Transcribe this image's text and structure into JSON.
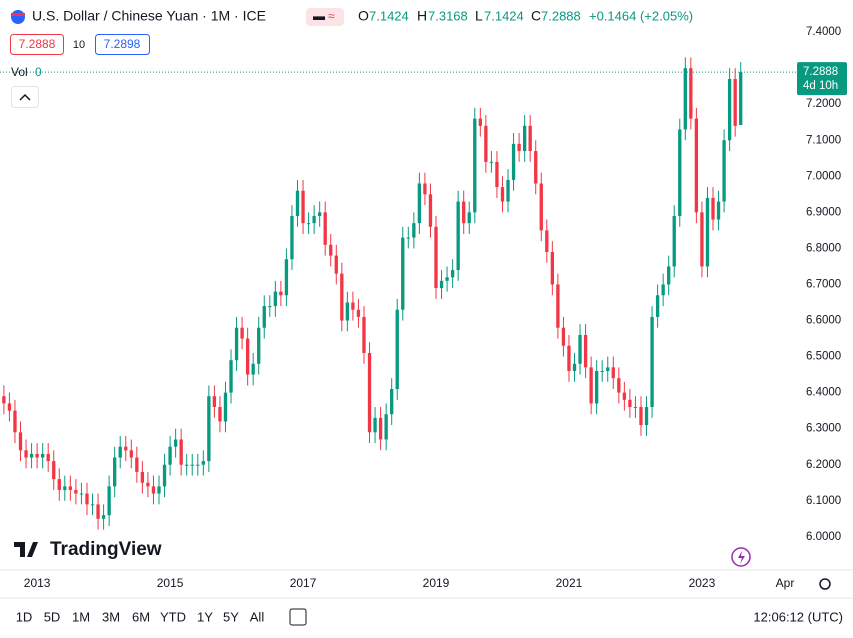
{
  "header": {
    "symbol": "U.S. Dollar / Chinese Yuan · 1M · ICE",
    "o_label": "O",
    "h_label": "H",
    "l_label": "L",
    "c_label": "C",
    "change": "+0.1464 (+2.05%)",
    "bid_size": 10,
    "ask": 7.2898,
    "volume_label": "Vol",
    "volume": 0,
    "countdown": "4d 10h"
  },
  "chart_data": {
    "type": "candlestick",
    "up_color": "#089981",
    "down_color": "#f23645",
    "open": [
      6.39,
      6.37,
      6.35,
      6.29,
      6.24,
      6.22,
      6.23,
      6.22,
      6.23,
      6.21,
      6.16,
      6.13,
      6.14,
      6.13,
      6.12,
      6.12,
      6.09,
      6.09,
      6.05,
      6.06,
      6.14,
      6.22,
      6.25,
      6.24,
      6.22,
      6.18,
      6.15,
      6.14,
      6.12,
      6.14,
      6.2,
      6.25,
      6.27,
      6.2,
      6.2,
      6.2,
      6.2,
      6.21,
      6.39,
      6.36,
      6.32,
      6.4,
      6.49,
      6.58,
      6.55,
      6.45,
      6.48,
      6.58,
      6.64,
      6.64,
      6.68,
      6.67,
      6.77,
      6.89,
      6.96,
      6.87,
      6.87,
      6.89,
      6.9,
      6.81,
      6.78,
      6.73,
      6.6,
      6.65,
      6.63,
      6.61,
      6.51,
      6.29,
      6.33,
      6.27,
      6.34,
      6.41,
      6.63,
      6.83,
      6.83,
      6.87,
      6.98,
      6.95,
      6.86,
      6.69,
      6.71,
      6.72,
      6.74,
      6.93,
      6.87,
      6.9,
      7.16,
      7.14,
      7.04,
      7.04,
      6.97,
      6.93,
      6.99,
      7.09,
      7.07,
      7.14,
      7.07,
      6.98,
      6.85,
      6.79,
      6.7,
      6.58,
      6.53,
      6.46,
      6.48,
      6.56,
      6.47,
      6.37,
      6.46,
      6.46,
      6.47,
      6.44,
      6.4,
      6.38,
      6.36,
      6.36,
      6.31,
      6.36,
      6.61,
      6.67,
      6.7,
      6.75,
      6.89,
      7.13,
      7.3,
      7.16,
      6.9,
      6.75,
      6.94,
      6.88,
      6.93,
      7.1,
      7.27,
      7.1424
    ],
    "high": [
      6.42,
      6.4,
      6.38,
      6.32,
      6.27,
      6.26,
      6.26,
      6.26,
      6.26,
      6.24,
      6.19,
      6.17,
      6.17,
      6.16,
      6.15,
      6.15,
      6.12,
      6.12,
      6.09,
      6.17,
      6.25,
      6.28,
      6.28,
      6.27,
      6.25,
      6.21,
      6.18,
      6.17,
      6.17,
      6.23,
      6.28,
      6.3,
      6.3,
      6.23,
      6.23,
      6.23,
      6.24,
      6.42,
      6.42,
      6.39,
      6.43,
      6.52,
      6.61,
      6.61,
      6.58,
      6.51,
      6.61,
      6.67,
      6.67,
      6.71,
      6.71,
      6.8,
      6.92,
      6.99,
      6.99,
      6.9,
      6.92,
      6.93,
      6.93,
      6.84,
      6.81,
      6.76,
      6.68,
      6.68,
      6.66,
      6.64,
      6.54,
      6.36,
      6.36,
      6.37,
      6.44,
      6.66,
      6.86,
      6.86,
      6.9,
      7.01,
      7.01,
      6.98,
      6.89,
      6.74,
      6.75,
      6.77,
      6.96,
      6.96,
      6.93,
      7.19,
      7.19,
      7.17,
      7.07,
      7.07,
      7.0,
      7.02,
      7.12,
      7.12,
      7.17,
      7.17,
      7.1,
      7.01,
      6.88,
      6.82,
      6.73,
      6.61,
      6.56,
      6.51,
      6.59,
      6.59,
      6.5,
      6.49,
      6.49,
      6.5,
      6.5,
      6.47,
      6.43,
      6.41,
      6.39,
      6.39,
      6.39,
      6.64,
      6.7,
      6.73,
      6.78,
      6.92,
      7.16,
      7.33,
      7.33,
      7.19,
      6.93,
      6.97,
      6.97,
      6.96,
      7.13,
      7.3,
      7.3,
      7.3168
    ],
    "low": [
      6.34,
      6.32,
      6.26,
      6.21,
      6.19,
      6.19,
      6.19,
      6.19,
      6.18,
      6.13,
      6.1,
      6.1,
      6.1,
      6.09,
      6.09,
      6.06,
      6.06,
      6.02,
      6.02,
      6.03,
      6.11,
      6.19,
      6.21,
      6.19,
      6.15,
      6.12,
      6.11,
      6.09,
      6.09,
      6.11,
      6.17,
      6.22,
      6.17,
      6.17,
      6.17,
      6.17,
      6.17,
      6.18,
      6.33,
      6.29,
      6.29,
      6.37,
      6.46,
      6.52,
      6.42,
      6.42,
      6.45,
      6.55,
      6.61,
      6.61,
      6.64,
      6.64,
      6.74,
      6.86,
      6.84,
      6.84,
      6.84,
      6.86,
      6.78,
      6.75,
      6.7,
      6.57,
      6.57,
      6.6,
      6.58,
      6.48,
      6.26,
      6.26,
      6.24,
      6.24,
      6.31,
      6.38,
      6.6,
      6.8,
      6.8,
      6.84,
      6.92,
      6.83,
      6.66,
      6.66,
      6.68,
      6.69,
      6.71,
      6.84,
      6.84,
      6.87,
      7.11,
      7.01,
      7.01,
      6.94,
      6.9,
      6.9,
      6.96,
      7.04,
      7.04,
      7.04,
      6.95,
      6.82,
      6.76,
      6.67,
      6.55,
      6.5,
      6.43,
      6.43,
      6.45,
      6.44,
      6.34,
      6.34,
      6.43,
      6.43,
      6.41,
      6.37,
      6.35,
      6.33,
      6.33,
      6.28,
      6.28,
      6.33,
      6.58,
      6.64,
      6.67,
      6.72,
      6.86,
      7.1,
      7.13,
      6.87,
      6.72,
      6.72,
      6.85,
      6.85,
      6.9,
      7.07,
      7.11,
      7.1424
    ],
    "close": [
      6.37,
      6.35,
      6.29,
      6.24,
      6.22,
      6.23,
      6.22,
      6.23,
      6.21,
      6.16,
      6.13,
      6.14,
      6.13,
      6.12,
      6.12,
      6.09,
      6.09,
      6.05,
      6.06,
      6.14,
      6.22,
      6.25,
      6.24,
      6.22,
      6.18,
      6.15,
      6.14,
      6.12,
      6.14,
      6.2,
      6.25,
      6.27,
      6.2,
      6.2,
      6.2,
      6.2,
      6.21,
      6.39,
      6.36,
      6.32,
      6.4,
      6.49,
      6.58,
      6.55,
      6.45,
      6.48,
      6.58,
      6.64,
      6.64,
      6.68,
      6.67,
      6.77,
      6.89,
      6.96,
      6.87,
      6.87,
      6.89,
      6.9,
      6.81,
      6.78,
      6.73,
      6.6,
      6.65,
      6.63,
      6.61,
      6.51,
      6.29,
      6.33,
      6.27,
      6.34,
      6.41,
      6.63,
      6.83,
      6.83,
      6.87,
      6.98,
      6.95,
      6.86,
      6.69,
      6.71,
      6.72,
      6.74,
      6.93,
      6.87,
      6.9,
      7.16,
      7.14,
      7.04,
      7.04,
      6.97,
      6.93,
      6.99,
      7.09,
      7.07,
      7.14,
      7.07,
      6.98,
      6.85,
      6.79,
      6.7,
      6.58,
      6.53,
      6.46,
      6.48,
      6.56,
      6.47,
      6.37,
      6.46,
      6.46,
      6.47,
      6.44,
      6.4,
      6.38,
      6.36,
      6.36,
      6.31,
      6.36,
      6.61,
      6.67,
      6.7,
      6.75,
      6.89,
      7.13,
      7.3,
      7.16,
      6.9,
      6.75,
      6.94,
      6.88,
      6.93,
      7.1,
      7.27,
      7.14,
      7.2888
    ],
    "xlim": [
      -0.7,
      142.8
    ],
    "xticks": [
      {
        "value": 6,
        "label": "2013"
      },
      {
        "value": 30,
        "label": "2015"
      },
      {
        "value": 54,
        "label": "2017"
      },
      {
        "value": 78,
        "label": "2019"
      },
      {
        "value": 102,
        "label": "2021"
      },
      {
        "value": 126,
        "label": "2023"
      },
      {
        "value": 141,
        "label": "Apr"
      }
    ],
    "ylim": [
      5.908,
      7.489
    ],
    "yticks": [
      {
        "value": 6.0,
        "label": "6.0000"
      },
      {
        "value": 6.1,
        "label": "6.1000"
      },
      {
        "value": 6.2,
        "label": "6.2000"
      },
      {
        "value": 6.3,
        "label": "6.3000"
      },
      {
        "value": 6.4,
        "label": "6.4000"
      },
      {
        "value": 6.5,
        "label": "6.5000"
      },
      {
        "value": 6.6,
        "label": "6.6000"
      },
      {
        "value": 6.7,
        "label": "6.7000"
      },
      {
        "value": 6.8,
        "label": "6.8000"
      },
      {
        "value": 6.9,
        "label": "6.9000"
      },
      {
        "value": 7.0,
        "label": "7.0000"
      },
      {
        "value": 7.1,
        "label": "7.1000"
      },
      {
        "value": 7.2,
        "label": "7.2000"
      },
      {
        "value": 7.3,
        "label": "7.3000"
      },
      {
        "value": 7.4,
        "label": "7.4000"
      }
    ],
    "grid": false
  },
  "logo": "TradingView",
  "toolbar": {
    "ranges": [
      "1D",
      "5D",
      "1M",
      "3M",
      "6M",
      "YTD",
      "1Y",
      "5Y",
      "All"
    ],
    "clock": "12:06:12 (UTC)"
  }
}
